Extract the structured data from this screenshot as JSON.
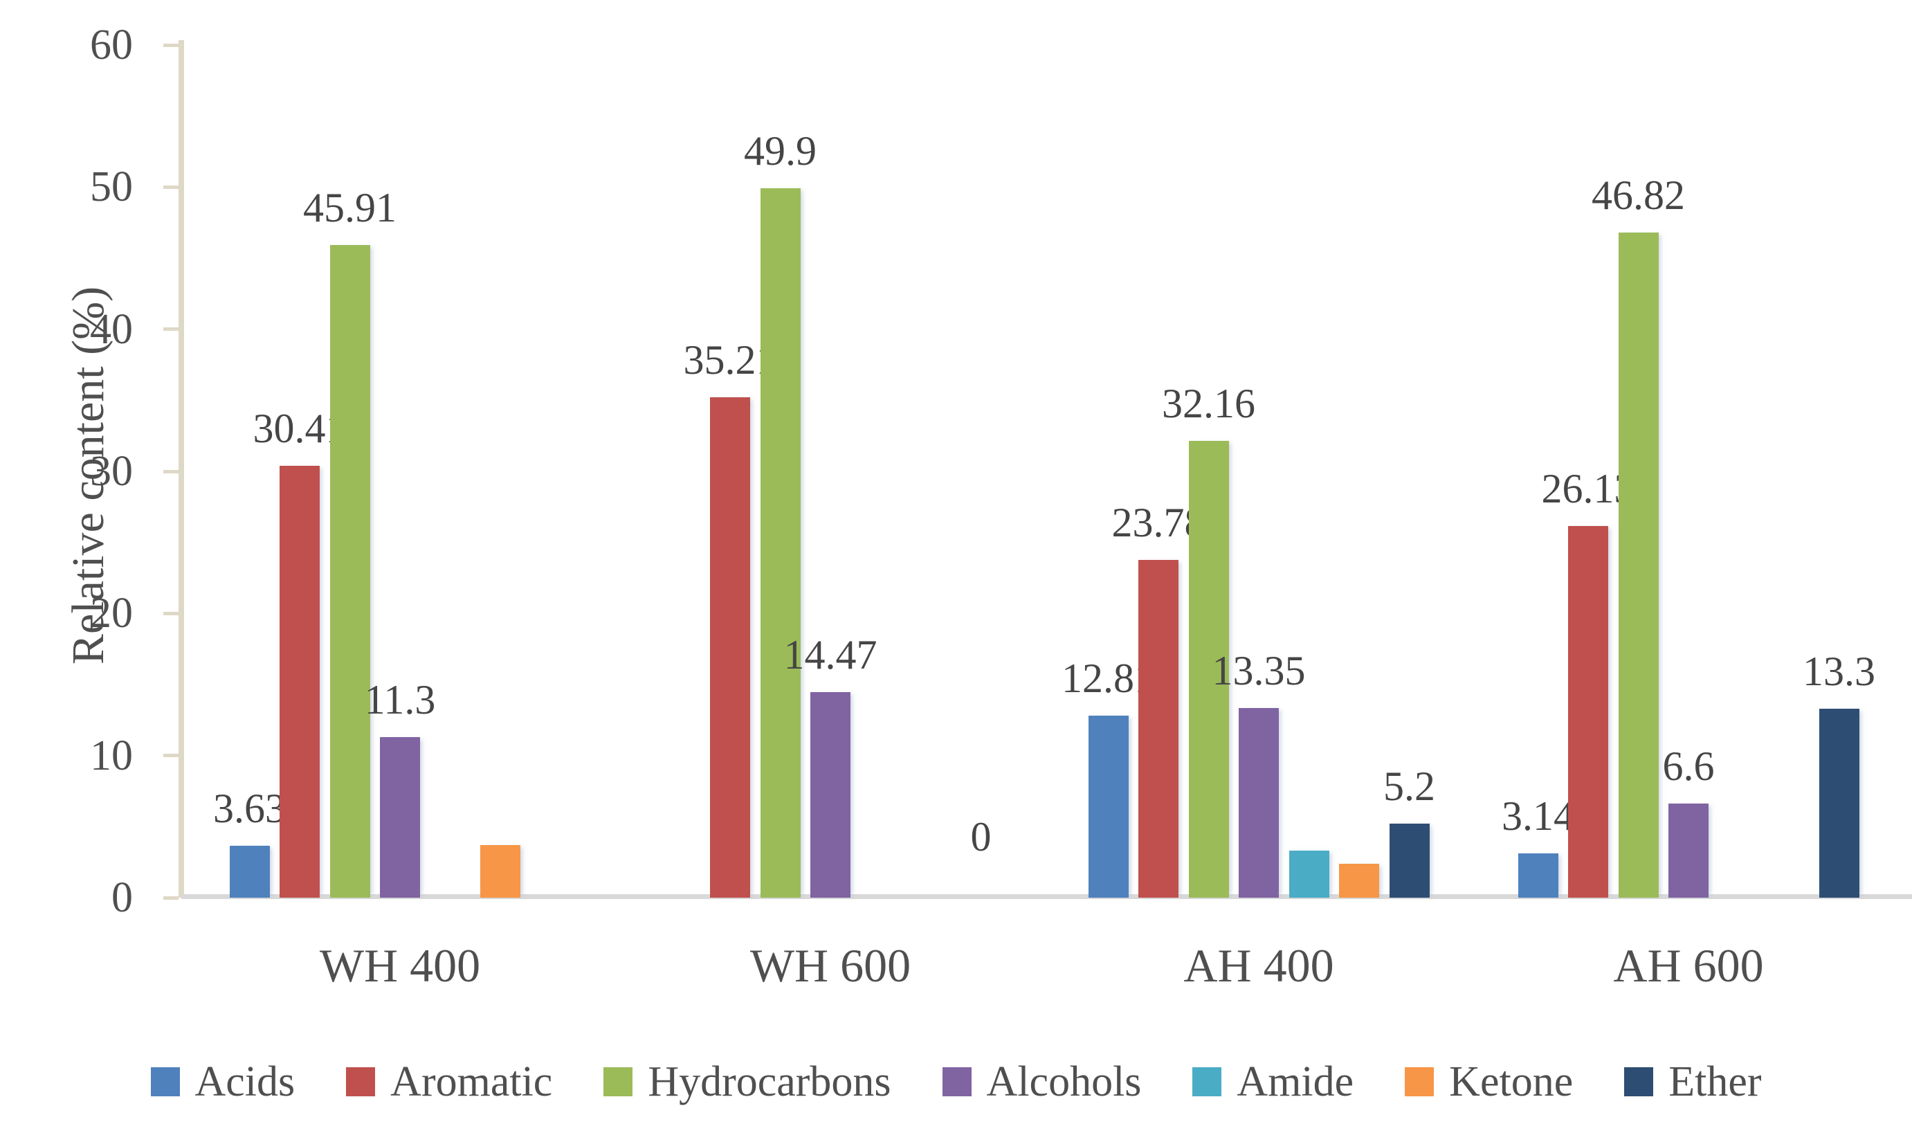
{
  "chart_data": {
    "type": "bar",
    "title": "",
    "xlabel": "",
    "ylabel": "Relative content (%)",
    "ylim": [
      0,
      60
    ],
    "yticks": [
      0,
      10,
      20,
      30,
      40,
      50,
      60
    ],
    "grid": false,
    "legend_position": "bottom",
    "categories": [
      "WH 400",
      "WH 600",
      "AH 400",
      "AH 600"
    ],
    "series": [
      {
        "name": "Acids",
        "color": "#4F81BD",
        "values": [
          3.63,
          0,
          12.81,
          3.14
        ],
        "labels": [
          "3.63",
          null,
          "12.81",
          "3.14"
        ]
      },
      {
        "name": "Aromatic",
        "color": "#C0504D",
        "values": [
          30.41,
          35.21,
          23.78,
          26.13
        ],
        "labels": [
          "30.41",
          "35.21",
          "23.78",
          "26.13"
        ]
      },
      {
        "name": "Hydrocarbons",
        "color": "#9BBB59",
        "values": [
          45.91,
          49.9,
          32.16,
          46.82
        ],
        "labels": [
          "45.91",
          "49.9",
          "32.16",
          "46.82"
        ]
      },
      {
        "name": "Alcohols",
        "color": "#8064A2",
        "values": [
          11.3,
          14.47,
          13.35,
          6.6
        ],
        "labels": [
          "11.3",
          "14.47",
          "13.35",
          "6.6"
        ]
      },
      {
        "name": "Amide",
        "color": "#4BACC6",
        "values": [
          0,
          0,
          3.3,
          0
        ],
        "labels": [
          null,
          null,
          null,
          null
        ]
      },
      {
        "name": "Ketone",
        "color": "#F79646",
        "values": [
          3.7,
          0,
          2.4,
          0
        ],
        "labels": [
          null,
          null,
          null,
          null
        ]
      },
      {
        "name": "Ether",
        "color": "#2E4D73",
        "values": [
          0,
          0,
          5.2,
          13.3
        ],
        "labels": [
          null,
          "0",
          "5.2",
          "13.3"
        ]
      }
    ],
    "colors": {
      "axis_line": "#DED8C6",
      "baseline": "#D9D9D9",
      "text": "#4F4F4F"
    }
  }
}
